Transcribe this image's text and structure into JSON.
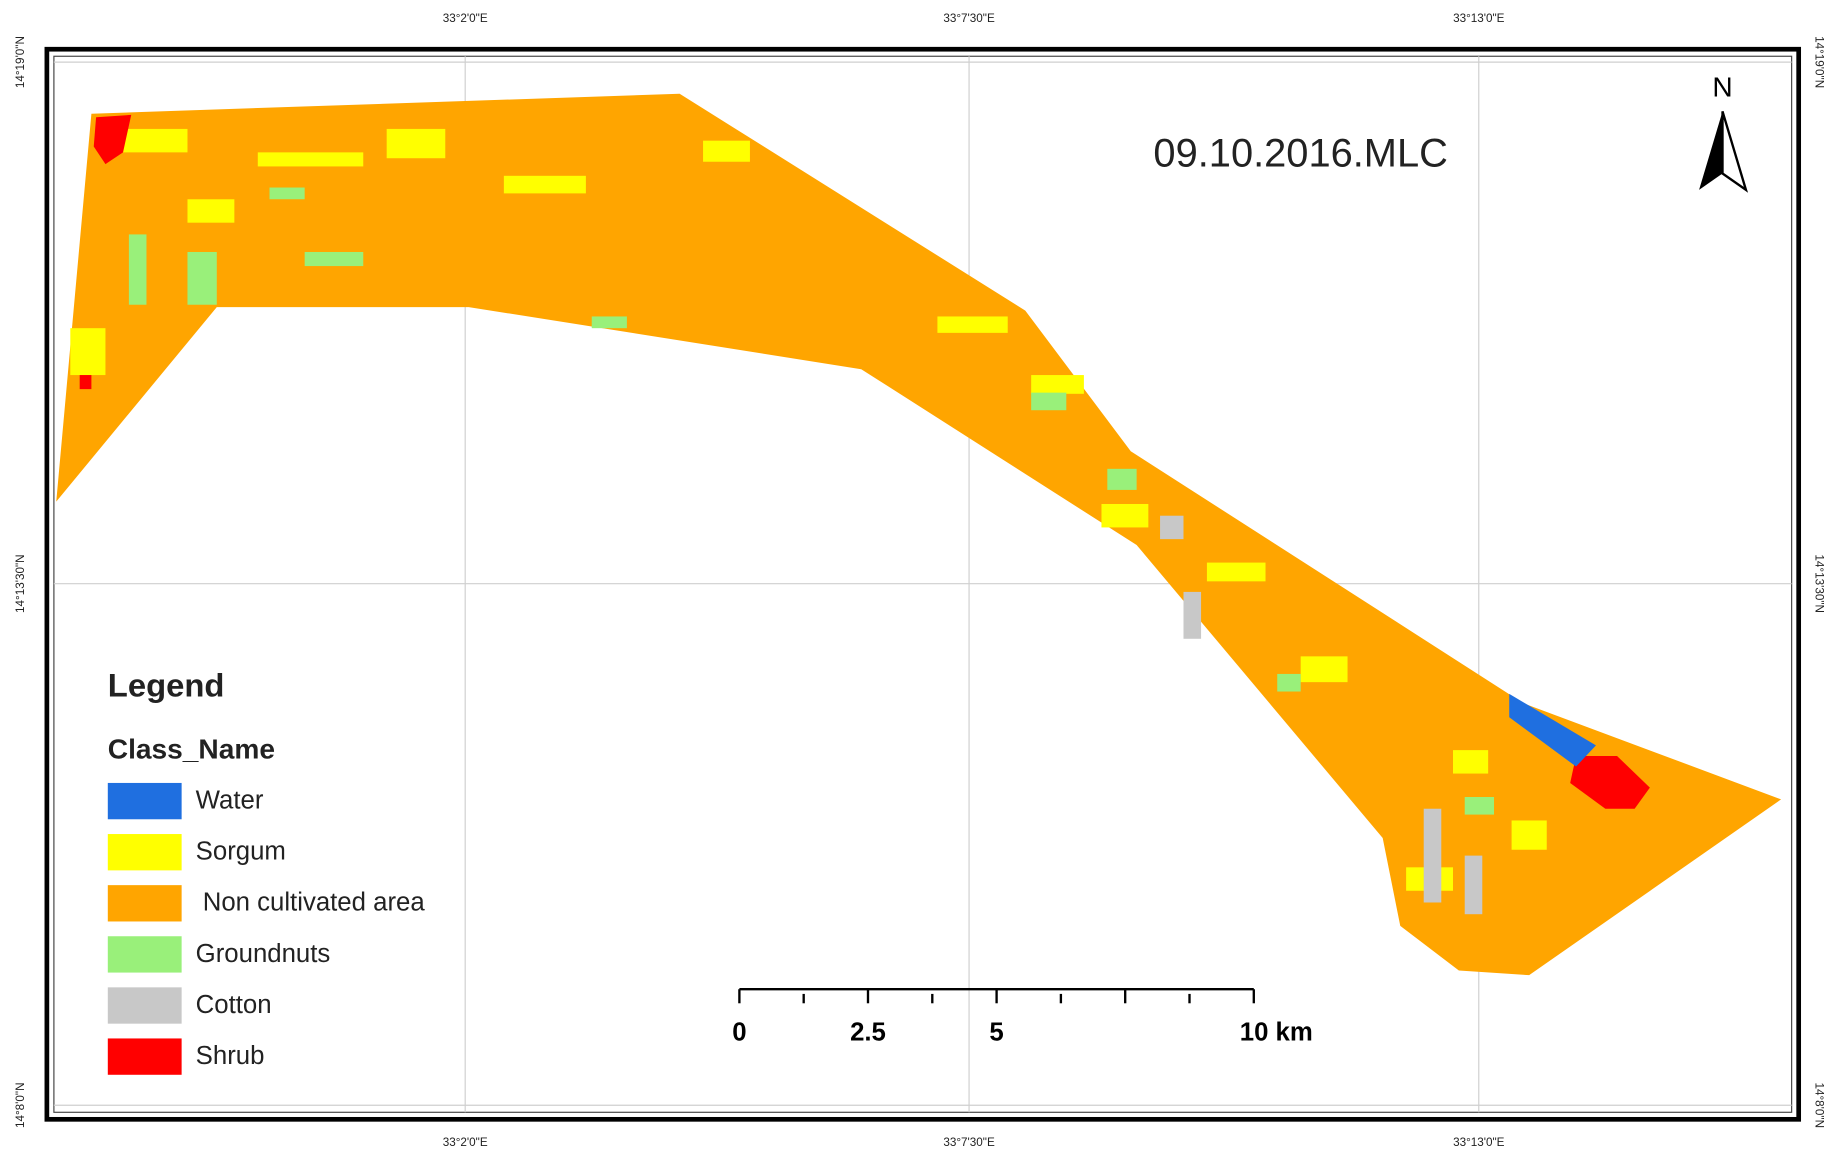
{
  "map": {
    "title": "09.10.2016.MLC",
    "north": "N",
    "legend_title": "Legend",
    "legend_subtitle": "Class_Name",
    "classes": [
      {
        "name": "Water",
        "color": "#1f6fe0"
      },
      {
        "name": "Sorgum",
        "color": "#ffff00"
      },
      {
        "name": "Non cultivated area",
        "color": "#ffa500"
      },
      {
        "name": "Groundnuts",
        "color": "#99f07a"
      },
      {
        "name": "Cotton",
        "color": "#c8c8c8"
      },
      {
        "name": "Shrub",
        "color": "#ff0000"
      }
    ],
    "scale_labels": [
      "0",
      "2.5",
      "5",
      "10 km"
    ],
    "lon_labels": [
      "33°2'0\"E",
      "33°7'30\"E",
      "33°13'0\"E"
    ],
    "lat_labels": [
      "14°19'0\"N",
      "14°13'30\"N",
      "14°8'0\"N"
    ]
  }
}
